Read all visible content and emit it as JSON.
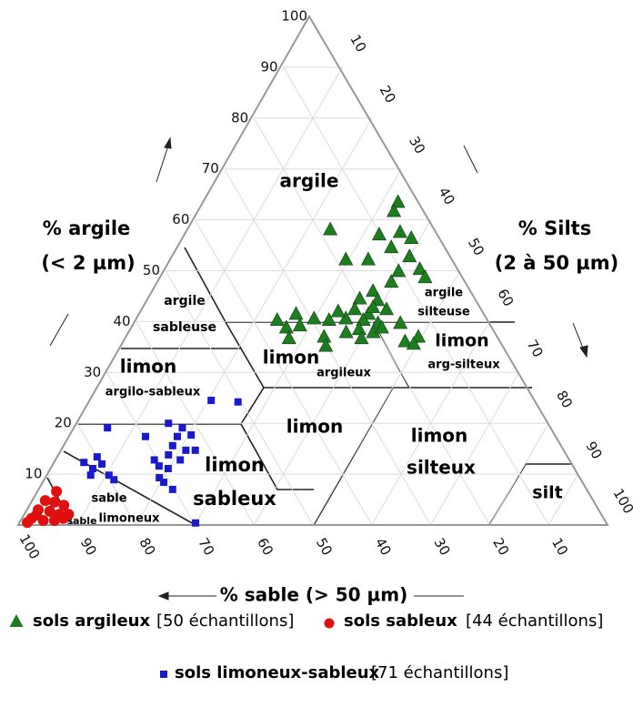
{
  "chart_data": {
    "type": "ternary",
    "a_label": [
      "% argile",
      "(< 2 µm)"
    ],
    "b_label": [
      "% Silts",
      "(2 à 50 µm)"
    ],
    "c_label": "% sable (> 50 µm)",
    "a_ticks": [
      10,
      20,
      30,
      40,
      50,
      60,
      70,
      80,
      90,
      100
    ],
    "b_ticks": [
      10,
      20,
      30,
      40,
      50,
      60,
      70,
      80,
      90,
      100
    ],
    "c_ticks": [
      100,
      90,
      80,
      70,
      60,
      50,
      40,
      30,
      20,
      10
    ],
    "lim": [
      0,
      100
    ],
    "grid": true,
    "zones": [
      [
        "argile"
      ],
      [
        "argile",
        "sableuse"
      ],
      [
        "limon",
        "argilo-sableux"
      ],
      [
        "limon",
        "argileux"
      ],
      [
        "argile",
        "silteuse"
      ],
      [
        "limon",
        "arg-silteux"
      ],
      [
        "limon"
      ],
      [
        "limon",
        "sableux"
      ],
      [
        "limon",
        "silteux"
      ],
      [
        "silt"
      ],
      [
        "sable",
        "limoneux"
      ],
      [
        "sable"
      ]
    ],
    "series": [
      {
        "name": "sols argileux",
        "count_label": "[50 échantillons]",
        "color": "#1e7d1e",
        "marker": "triangle",
        "values": [
          63.5,
          61.7,
          58.1,
          57.1,
          57.6,
          56.4,
          54.6,
          52.2,
          52.2,
          52.8,
          49.9,
          50.3,
          48.7,
          47.8,
          46.0,
          44.5,
          44.2,
          42.4,
          41.5,
          42.4,
          41.5,
          40.6,
          40.3,
          40.6,
          40.3,
          39.7,
          39.7,
          40.3,
          38.8,
          36.7,
          37.0,
          37.9,
          38.5,
          37.9,
          36.1,
          37.0,
          35.2,
          36.7,
          38.8,
          39.2,
          42.0,
          35.6,
          42.8
        ],
        "x": [
          3.8,
          5.4,
          18.0,
          10.2,
          6.4,
          5.1,
          9.4,
          18.3,
          14.5,
          7.2,
          10.5,
          6.7,
          6.6,
          12.8,
          16.8,
          19.8,
          16.9,
          21.7,
          19.8,
          16.3,
          32.1,
          29.5,
          27.1,
          24.1,
          21.3,
          19.1,
          15.3,
          35.9,
          35.1,
          35.7,
          29.6,
          25.4,
          22.9,
          20.8,
          16.3,
          13.6,
          30.2,
          23.4,
          18.9,
          32.6,
          24.7,
          15.1,
          18.4
        ]
      },
      {
        "name": "sols sableux",
        "count_label": "[44 échantillons]",
        "color": "#e01010",
        "marker": "circle",
        "values": [
          6.6,
          4.8,
          4.5,
          3.9,
          3.0,
          2.7,
          2.1,
          2.1,
          1.3,
          0.9,
          0.9,
          0.5,
          1.3,
          2.0
        ],
        "x": [
          90.2,
          93.0,
          91.6,
          90.3,
          95.1,
          93.3,
          92.0,
          90.4,
          97.1,
          95.3,
          93.4,
          98.2,
          91.7,
          95.9
        ]
      },
      {
        "name": "sols limoneux-sableux",
        "count_label": "[71 échantillons]",
        "color": "#1a1acc",
        "marker": "square",
        "values": [
          24.5,
          24.2,
          20.0,
          19.1,
          19.1,
          17.4,
          17.4,
          17.7,
          15.6,
          14.7,
          14.7,
          13.8,
          13.4,
          12.3,
          11.1,
          11.6,
          11.1,
          9.8,
          9.8,
          8.9,
          9.3,
          8.4,
          7.0,
          0.4,
          12.8,
          12.8,
          12.0
        ],
        "x": [
          55.0,
          50.6,
          64.5,
          75.3,
          62.6,
          69.7,
          64.3,
          61.8,
          66.0,
          64.2,
          62.6,
          67.6,
          79.9,
          82.7,
          81.8,
          70.3,
          69.0,
          82.8,
          79.7,
          79.3,
          71.4,
          71.1,
          70.3,
          69.7,
          70.5,
          66.1,
          79.8
        ]
      }
    ]
  }
}
